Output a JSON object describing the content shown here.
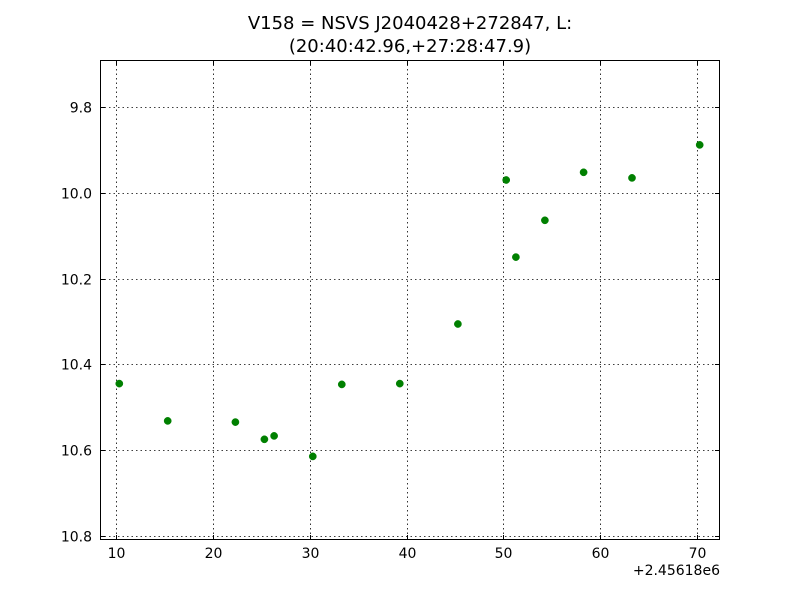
{
  "chart_data": {
    "type": "scatter",
    "title_line1": "V158 = NSVS J2040428+272847, L:",
    "title_line2": "(20:40:42.96,+27:28:47.9)",
    "xlabel": "",
    "ylabel": "",
    "x_offset_label": "+2.45618e6",
    "xlim": [
      8.3,
      72.4
    ],
    "ylim": [
      10.81,
      9.69
    ],
    "y_inverted": true,
    "grid": true,
    "x_ticks": [
      10,
      20,
      30,
      40,
      50,
      60,
      70
    ],
    "x_tick_labels": [
      "10",
      "20",
      "30",
      "40",
      "50",
      "60",
      "70"
    ],
    "y_ticks": [
      9.8,
      10.0,
      10.2,
      10.4,
      10.6,
      10.8
    ],
    "y_tick_labels": [
      "9.8",
      "10.0",
      "10.2",
      "10.4",
      "10.6",
      "10.8"
    ],
    "marker_color": "#008000",
    "series": [
      {
        "points": [
          {
            "x": 10.3,
            "y": 10.445
          },
          {
            "x": 15.3,
            "y": 10.532
          },
          {
            "x": 22.3,
            "y": 10.535
          },
          {
            "x": 25.3,
            "y": 10.575
          },
          {
            "x": 26.3,
            "y": 10.567
          },
          {
            "x": 30.3,
            "y": 10.615
          },
          {
            "x": 33.3,
            "y": 10.447
          },
          {
            "x": 39.3,
            "y": 10.445
          },
          {
            "x": 45.3,
            "y": 10.306
          },
          {
            "x": 50.3,
            "y": 9.97
          },
          {
            "x": 51.3,
            "y": 10.15
          },
          {
            "x": 54.3,
            "y": 10.064
          },
          {
            "x": 58.3,
            "y": 9.952
          },
          {
            "x": 63.3,
            "y": 9.965
          },
          {
            "x": 70.3,
            "y": 9.888
          }
        ]
      }
    ]
  }
}
